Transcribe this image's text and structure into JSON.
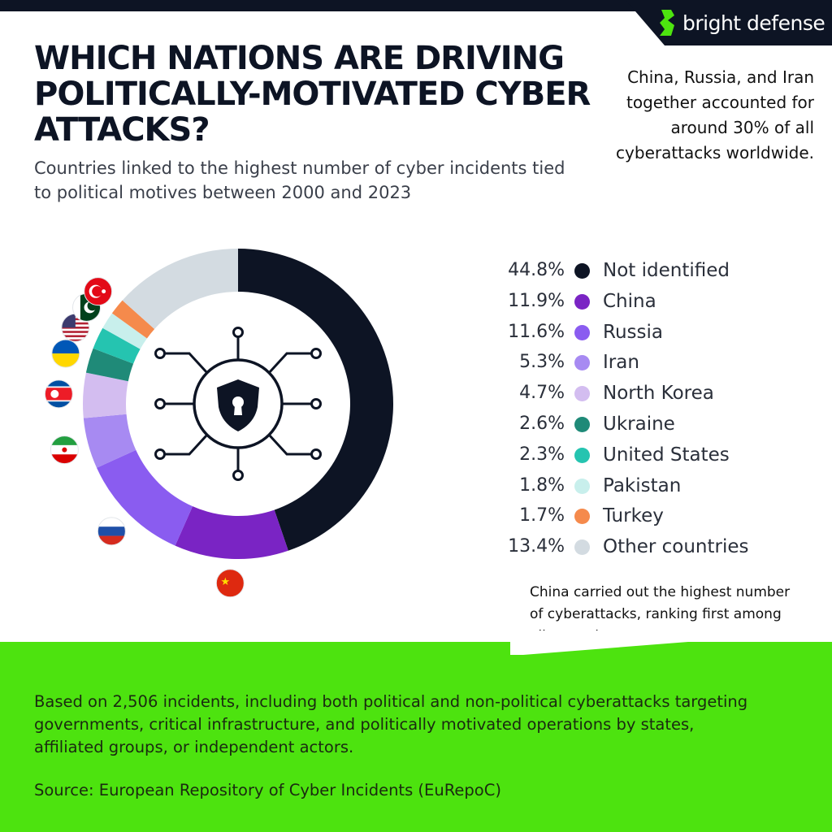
{
  "brand": {
    "name": "bright defense",
    "accent": "#4de30f"
  },
  "title": "WHICH NATIONS ARE DRIVING POLITICALLY-MOTIVATED CYBER ATTACKS?",
  "subtitle": "Countries linked to the highest number of cyber incidents tied to political motives between 2000 and 2023",
  "note_top": "China, Russia, and Iran together accounted for around 30% of all cyberattacks worldwide.",
  "note_mid": "China carried out the highest number of cyberattacks, ranking first among all countries.",
  "footer": {
    "text": "Based on 2,506 incidents, including both political and non-political cyberattacks targeting governments, critical infrastructure, and politically motivated operations by states, affiliated groups, or independent actors.",
    "source": "Source: European Repository of Cyber Incidents (EuRepoC)"
  },
  "center_icon": "shield-keyhole-circuit-icon",
  "chart_data": {
    "type": "pie",
    "variant": "donut",
    "unit": "%",
    "categories": [
      "Not identified",
      "China",
      "Russia",
      "Iran",
      "North Korea",
      "Ukraine",
      "United States",
      "Pakistan",
      "Turkey",
      "Other countries"
    ],
    "values": [
      44.8,
      11.9,
      11.6,
      5.3,
      4.7,
      2.6,
      2.3,
      1.8,
      1.7,
      13.4
    ],
    "labels": [
      "44.8%",
      "11.9%",
      "11.6%",
      "5.3%",
      "4.7%",
      "2.6%",
      "2.3%",
      "1.8%",
      "1.7%",
      "13.4%"
    ],
    "colors": [
      "#0d1424",
      "#7a24c4",
      "#8a5cf0",
      "#a78af2",
      "#d3bdf0",
      "#1f8a78",
      "#25c4b0",
      "#c8efec",
      "#f58a4c",
      "#d3dbe1"
    ],
    "legend_placement": "right",
    "flags": [
      "Russia",
      "China",
      "Iran",
      "North Korea",
      "Ukraine",
      "United States",
      "Pakistan",
      "Turkey"
    ]
  }
}
